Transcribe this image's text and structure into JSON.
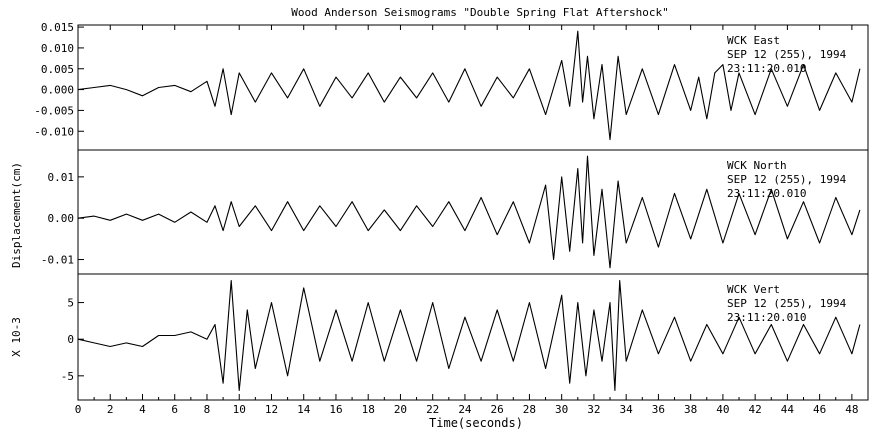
{
  "chart_data": {
    "type": "line",
    "title": "Wood Anderson Seismograms \"Double Spring Flat Aftershock\"",
    "xlabel": "Time(seconds)",
    "shared_ylabel": "Displacement(cm)",
    "x_range": [
      0,
      49
    ],
    "x_ticks": [
      0,
      2,
      4,
      6,
      8,
      10,
      12,
      14,
      16,
      18,
      20,
      22,
      24,
      26,
      28,
      30,
      32,
      34,
      36,
      38,
      40,
      42,
      44,
      46,
      48
    ],
    "grid": false,
    "panels": [
      {
        "name": "east",
        "station": "WCK",
        "component": "East",
        "date_label": "SEP 12 (255), 1994",
        "time_label": "23:11:20.010",
        "ylabel": "",
        "ylim": [
          -0.0145,
          0.0155
        ],
        "y_ticks": [
          0.015,
          0.01,
          0.005,
          0.0,
          -0.005,
          -0.01
        ],
        "y_tick_labels": [
          "0.015",
          "0.010",
          "0.005",
          "0.000",
          "-0.005",
          "-0.010"
        ],
        "x": [
          0,
          1,
          2,
          3,
          4,
          5,
          6,
          7,
          8,
          8.5,
          9,
          9.5,
          10,
          11,
          12,
          13,
          14,
          15,
          16,
          17,
          18,
          19,
          20,
          21,
          22,
          23,
          24,
          25,
          26,
          27,
          28,
          29,
          30,
          30.5,
          31,
          31.3,
          31.6,
          32,
          32.5,
          33,
          33.5,
          34,
          35,
          36,
          37,
          38,
          38.5,
          39,
          39.5,
          40,
          40.5,
          41,
          42,
          43,
          44,
          45,
          46,
          47,
          48,
          48.5
        ],
        "values": [
          0.0,
          0.0005,
          0.001,
          0.0,
          -0.0015,
          0.0005,
          0.001,
          -0.0005,
          0.002,
          -0.004,
          0.005,
          -0.006,
          0.004,
          -0.003,
          0.004,
          -0.002,
          0.005,
          -0.004,
          0.003,
          -0.002,
          0.004,
          -0.003,
          0.003,
          -0.002,
          0.004,
          -0.003,
          0.005,
          -0.004,
          0.003,
          -0.002,
          0.005,
          -0.006,
          0.007,
          -0.004,
          0.014,
          -0.003,
          0.008,
          -0.007,
          0.006,
          -0.012,
          0.008,
          -0.006,
          0.005,
          -0.006,
          0.006,
          -0.005,
          0.003,
          -0.007,
          0.004,
          0.006,
          -0.005,
          0.004,
          -0.006,
          0.005,
          -0.004,
          0.006,
          -0.005,
          0.004,
          -0.003,
          0.005
        ]
      },
      {
        "name": "north",
        "station": "WCK",
        "component": "North",
        "date_label": "SEP 12 (255), 1994",
        "time_label": "23:11:20.010",
        "ylabel": "Displacement(cm)",
        "ylim": [
          -0.0135,
          0.0165
        ],
        "y_ticks": [
          0.01,
          0.0,
          -0.01
        ],
        "y_tick_labels": [
          "0.01",
          "0.00",
          "-0.01"
        ],
        "x": [
          0,
          1,
          2,
          3,
          4,
          5,
          6,
          7,
          8,
          8.5,
          9,
          9.5,
          10,
          11,
          12,
          13,
          14,
          15,
          16,
          17,
          18,
          19,
          20,
          21,
          22,
          23,
          24,
          25,
          26,
          27,
          28,
          29,
          29.5,
          30,
          30.5,
          31,
          31.3,
          31.6,
          32,
          32.5,
          33,
          33.5,
          34,
          35,
          36,
          37,
          38,
          39,
          40,
          41,
          42,
          43,
          44,
          45,
          46,
          47,
          48,
          48.5
        ],
        "values": [
          0.0,
          0.0005,
          -0.0005,
          0.001,
          -0.0005,
          0.001,
          -0.001,
          0.0015,
          -0.001,
          0.003,
          -0.003,
          0.004,
          -0.002,
          0.003,
          -0.003,
          0.004,
          -0.003,
          0.003,
          -0.002,
          0.004,
          -0.003,
          0.002,
          -0.003,
          0.003,
          -0.002,
          0.004,
          -0.003,
          0.005,
          -0.004,
          0.004,
          -0.006,
          0.008,
          -0.01,
          0.01,
          -0.008,
          0.012,
          -0.006,
          0.015,
          -0.009,
          0.007,
          -0.012,
          0.009,
          -0.006,
          0.005,
          -0.007,
          0.006,
          -0.005,
          0.007,
          -0.006,
          0.006,
          -0.004,
          0.007,
          -0.005,
          0.004,
          -0.006,
          0.005,
          -0.004,
          0.002
        ]
      },
      {
        "name": "vert",
        "station": "WCK",
        "component": "Vert",
        "date_label": "SEP 12 (255), 1994",
        "time_label": "23:11:20.010",
        "ylabel": "X 10-3",
        "ylim": [
          -8.3,
          8.9
        ],
        "y_ticks": [
          5,
          0,
          -5
        ],
        "y_tick_labels": [
          "5",
          "0",
          "-5"
        ],
        "x": [
          0,
          1,
          2,
          3,
          4,
          5,
          6,
          7,
          8,
          8.5,
          9,
          9.5,
          10,
          10.5,
          11,
          12,
          13,
          14,
          15,
          16,
          17,
          18,
          19,
          20,
          21,
          22,
          23,
          24,
          25,
          26,
          27,
          28,
          29,
          30,
          30.5,
          31,
          31.5,
          32,
          32.5,
          33,
          33.3,
          33.6,
          34,
          35,
          36,
          37,
          38,
          39,
          40,
          41,
          42,
          43,
          44,
          45,
          46,
          47,
          48,
          48.5
        ],
        "values": [
          0.0,
          -0.5,
          -1.0,
          -0.5,
          -1.0,
          0.5,
          0.5,
          1.0,
          0.0,
          2.0,
          -6.0,
          8.0,
          -7.0,
          4.0,
          -4.0,
          5.0,
          -5.0,
          7.0,
          -3.0,
          4.0,
          -3.0,
          5.0,
          -3.0,
          4.0,
          -3.0,
          5.0,
          -4.0,
          3.0,
          -3.0,
          4.0,
          -3.0,
          5.0,
          -4.0,
          6.0,
          -6.0,
          5.0,
          -5.0,
          4.0,
          -3.0,
          5.0,
          -7.0,
          8.0,
          -3.0,
          4.0,
          -2.0,
          3.0,
          -3.0,
          2.0,
          -2.0,
          3.0,
          -2.0,
          2.0,
          -3.0,
          2.0,
          -2.0,
          3.0,
          -2.0,
          2.0
        ]
      }
    ]
  }
}
